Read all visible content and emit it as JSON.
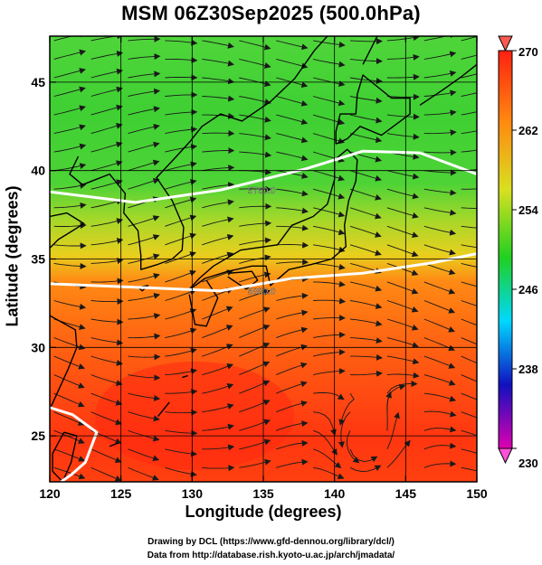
{
  "title": "MSM 06Z30Sep2025 (500.0hPa)",
  "x_axis": {
    "label": "Longitude (degrees)",
    "ticks": [
      120,
      125,
      130,
      135,
      140,
      145,
      150
    ],
    "range": [
      120,
      150
    ]
  },
  "y_axis": {
    "label": "Latitude  (degrees)",
    "ticks": [
      25,
      30,
      35,
      40,
      45
    ],
    "range": [
      22.4,
      47.6
    ]
  },
  "colorbar": {
    "ticks": [
      270,
      262,
      254,
      246,
      238,
      230
    ],
    "range": [
      230,
      270
    ],
    "colors": [
      "#e000b0",
      "#1010c0",
      "#00d8ff",
      "#20d020",
      "#d8e000",
      "#ff6000",
      "#ff2000"
    ]
  },
  "contours": [
    {
      "label": "5760.0",
      "lats_at_lon": [
        [
          120,
          38.8
        ],
        [
          126,
          38.2
        ],
        [
          132,
          38.9
        ],
        [
          138,
          40.1
        ],
        [
          142,
          41.1
        ],
        [
          146,
          41.0
        ],
        [
          150,
          39.8
        ]
      ]
    },
    {
      "label": "5880.0",
      "lats_at_lon": [
        [
          120,
          33.6
        ],
        [
          126,
          33.4
        ],
        [
          132,
          33.2
        ],
        [
          137,
          33.9
        ],
        [
          142,
          34.2
        ],
        [
          147,
          34.8
        ],
        [
          150,
          35.3
        ]
      ]
    },
    {
      "label": "",
      "lats_at_lon": [
        [
          120,
          26.6
        ],
        [
          121.6,
          26.2
        ],
        [
          123.3,
          25.2
        ],
        [
          122.5,
          23.5
        ],
        [
          121.5,
          22.8
        ],
        [
          120.8,
          22.4
        ]
      ]
    }
  ],
  "credits": {
    "line1": "Drawing by DCL (https://www.gfd-dennou.org/library/dcl/)",
    "line2": "Data from http://database.rish.kyoto-u.ac.jp/arch/jmadata/"
  }
}
